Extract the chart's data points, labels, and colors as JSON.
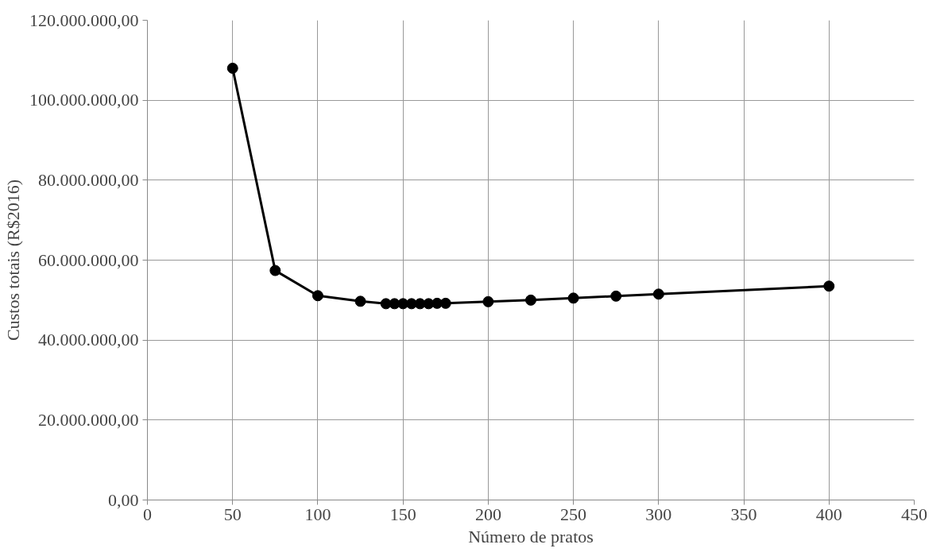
{
  "chart_data": {
    "type": "line",
    "xlabel": "Número de pratos",
    "ylabel": "Custos totais (R$2016)",
    "x": [
      50,
      75,
      100,
      125,
      140,
      145,
      150,
      155,
      160,
      165,
      170,
      175,
      200,
      225,
      250,
      275,
      300,
      400
    ],
    "series": [
      {
        "color": "#000000",
        "values": [
          108000000,
          57400000,
          51100000,
          49700000,
          49100000,
          49100000,
          49100000,
          49100000,
          49100000,
          49100000,
          49200000,
          49200000,
          49600000,
          50000000,
          50500000,
          51000000,
          51500000,
          53500000
        ]
      }
    ],
    "xlim": [
      0,
      450
    ],
    "xticks": [
      0,
      50,
      100,
      150,
      200,
      250,
      300,
      350,
      400,
      450
    ],
    "ylim": [
      0,
      120000000
    ],
    "yticks": [
      {
        "value": 0,
        "label": "0,00"
      },
      {
        "value": 20000000,
        "label": "20.000.000,00"
      },
      {
        "value": 40000000,
        "label": "40.000.000,00"
      },
      {
        "value": 60000000,
        "label": "60.000.000,00"
      },
      {
        "value": 80000000,
        "label": "80.000.000,00"
      },
      {
        "value": 100000000,
        "label": "100.000.000,00"
      },
      {
        "value": 120000000,
        "label": "120.000.000,00"
      }
    ],
    "grid": true,
    "marker": "circle",
    "line_style": "solid"
  }
}
